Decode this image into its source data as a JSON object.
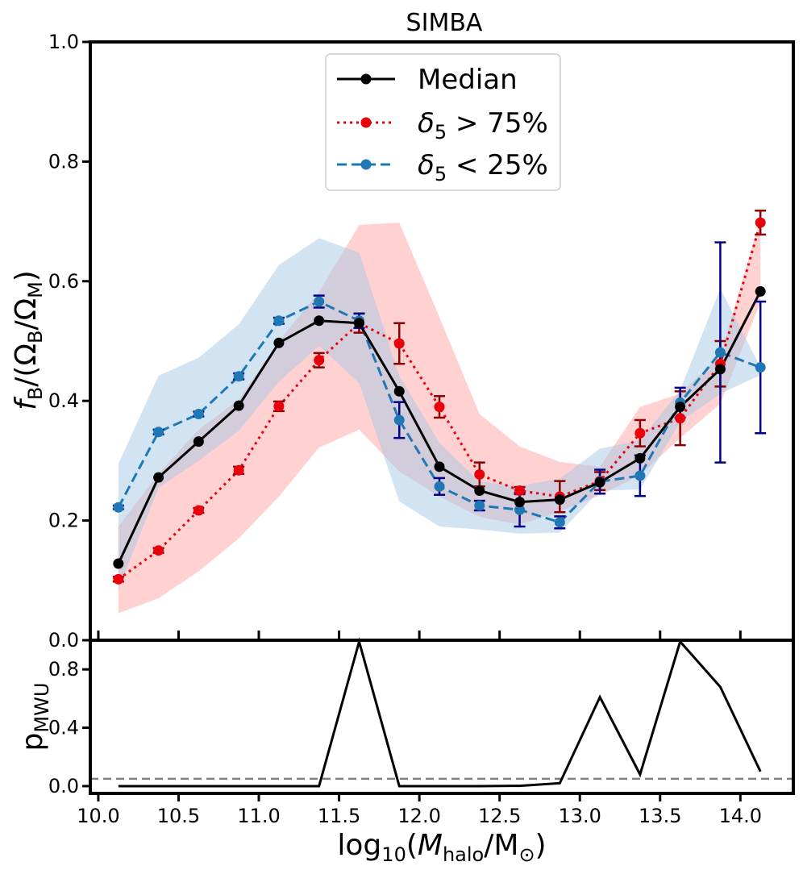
{
  "chart_data": [
    {
      "type": "line",
      "title": "SIMBA",
      "ylabel": "f_B/(Ω_B/Ω_M)",
      "xlabel": "",
      "xlim": [
        9.95,
        14.33
      ],
      "ylim": [
        0.0,
        1.0
      ],
      "yticks": [
        0.0,
        0.2,
        0.4,
        0.6,
        0.8,
        1.0
      ],
      "ytick_labels": [
        "0.0",
        "0.2",
        "0.4",
        "0.6",
        "0.8",
        "1.0"
      ],
      "legend_position": "top-center",
      "x": [
        10.125,
        10.375,
        10.625,
        10.875,
        11.125,
        11.375,
        11.625,
        11.875,
        12.125,
        12.375,
        12.625,
        12.875,
        13.125,
        13.375,
        13.625,
        13.875,
        14.125
      ],
      "series": [
        {
          "name": "Median",
          "color": "#000000",
          "style": "solid",
          "values": [
            0.128,
            0.272,
            0.332,
            0.392,
            0.497,
            0.534,
            0.53,
            0.416,
            0.29,
            0.25,
            0.231,
            0.235,
            0.264,
            0.304,
            0.39,
            0.453,
            0.583
          ],
          "errors": []
        },
        {
          "name": "δ5 > 75%",
          "color": "#e8000b",
          "error_color": "#8b0000",
          "style": "dotted",
          "values": [
            0.102,
            0.15,
            0.217,
            0.284,
            0.391,
            0.468,
            0.53,
            0.496,
            0.39,
            0.277,
            0.25,
            0.24,
            0.266,
            0.346,
            0.371,
            0.462,
            0.698
          ],
          "errors": [
            0.004,
            0.004,
            0.004,
            0.006,
            0.008,
            0.012,
            0.016,
            0.034,
            0.018,
            0.02,
            0.006,
            0.026,
            0.015,
            0.022,
            0.045,
            0.038,
            0.02
          ],
          "band_low": [
            0.045,
            0.07,
            0.115,
            0.17,
            0.24,
            0.322,
            0.352,
            0.282,
            0.24,
            0.206,
            0.193,
            0.215,
            0.242,
            0.276,
            0.338,
            0.395,
            0.565
          ],
          "band_high": [
            0.19,
            0.278,
            0.352,
            0.402,
            0.5,
            0.582,
            0.694,
            0.698,
            0.54,
            0.378,
            0.324,
            0.298,
            0.29,
            0.39,
            0.412,
            0.475,
            0.705
          ],
          "band_color": "#ffb3b3"
        },
        {
          "name": "δ5 < 25%",
          "color": "#1f77b4",
          "error_color": "#00008b",
          "style": "dashed",
          "values": [
            0.222,
            0.348,
            0.378,
            0.441,
            0.534,
            0.566,
            0.534,
            0.368,
            0.257,
            0.225,
            0.218,
            0.197,
            0.265,
            0.275,
            0.397,
            0.481,
            0.456
          ],
          "errors": [
            0.003,
            0.004,
            0.004,
            0.005,
            0.005,
            0.01,
            0.012,
            0.03,
            0.014,
            0.008,
            0.028,
            0.01,
            0.02,
            0.034,
            0.025,
            0.184,
            0.11
          ],
          "band_low": [
            0.085,
            0.255,
            0.3,
            0.35,
            0.432,
            0.492,
            0.43,
            0.232,
            0.19,
            0.185,
            0.178,
            0.18,
            0.25,
            0.252,
            0.365,
            0.412,
            0.443
          ],
          "band_high": [
            0.295,
            0.442,
            0.472,
            0.528,
            0.627,
            0.672,
            0.648,
            0.442,
            0.33,
            0.265,
            0.258,
            0.27,
            0.32,
            0.334,
            0.418,
            0.588,
            0.456
          ],
          "band_color": "#a6c8e6"
        }
      ]
    },
    {
      "type": "line",
      "title": "",
      "ylabel": "p_MWU",
      "xlabel": "log10(M_halo/M⊙)",
      "xlim": [
        9.95,
        14.33
      ],
      "ylim": [
        -0.05,
        1.0
      ],
      "xticks": [
        10.0,
        10.5,
        11.0,
        11.5,
        12.0,
        12.5,
        13.0,
        13.5,
        14.0
      ],
      "xtick_labels": [
        "10.0",
        "10.5",
        "11.0",
        "11.5",
        "12.0",
        "12.5",
        "13.0",
        "13.5",
        "14.0"
      ],
      "yticks": [
        0.0,
        0.4,
        0.8
      ],
      "ytick_labels": [
        "0.0",
        "0.4",
        "0.8"
      ],
      "x": [
        10.125,
        10.375,
        10.625,
        10.875,
        11.125,
        11.375,
        11.625,
        11.875,
        12.125,
        12.375,
        12.625,
        12.875,
        13.125,
        13.375,
        13.625,
        13.875,
        14.125
      ],
      "series": [
        {
          "name": "p_MWU",
          "color": "#000000",
          "style": "solid",
          "values": [
            0.0,
            0.0,
            0.0,
            0.0,
            0.0,
            0.0,
            0.99,
            0.0,
            0.0,
            0.0,
            0.002,
            0.02,
            0.61,
            0.08,
            0.99,
            0.68,
            0.1
          ]
        }
      ],
      "reference_line": {
        "y": 0.05,
        "color": "#808080",
        "style": "dashed"
      }
    }
  ]
}
